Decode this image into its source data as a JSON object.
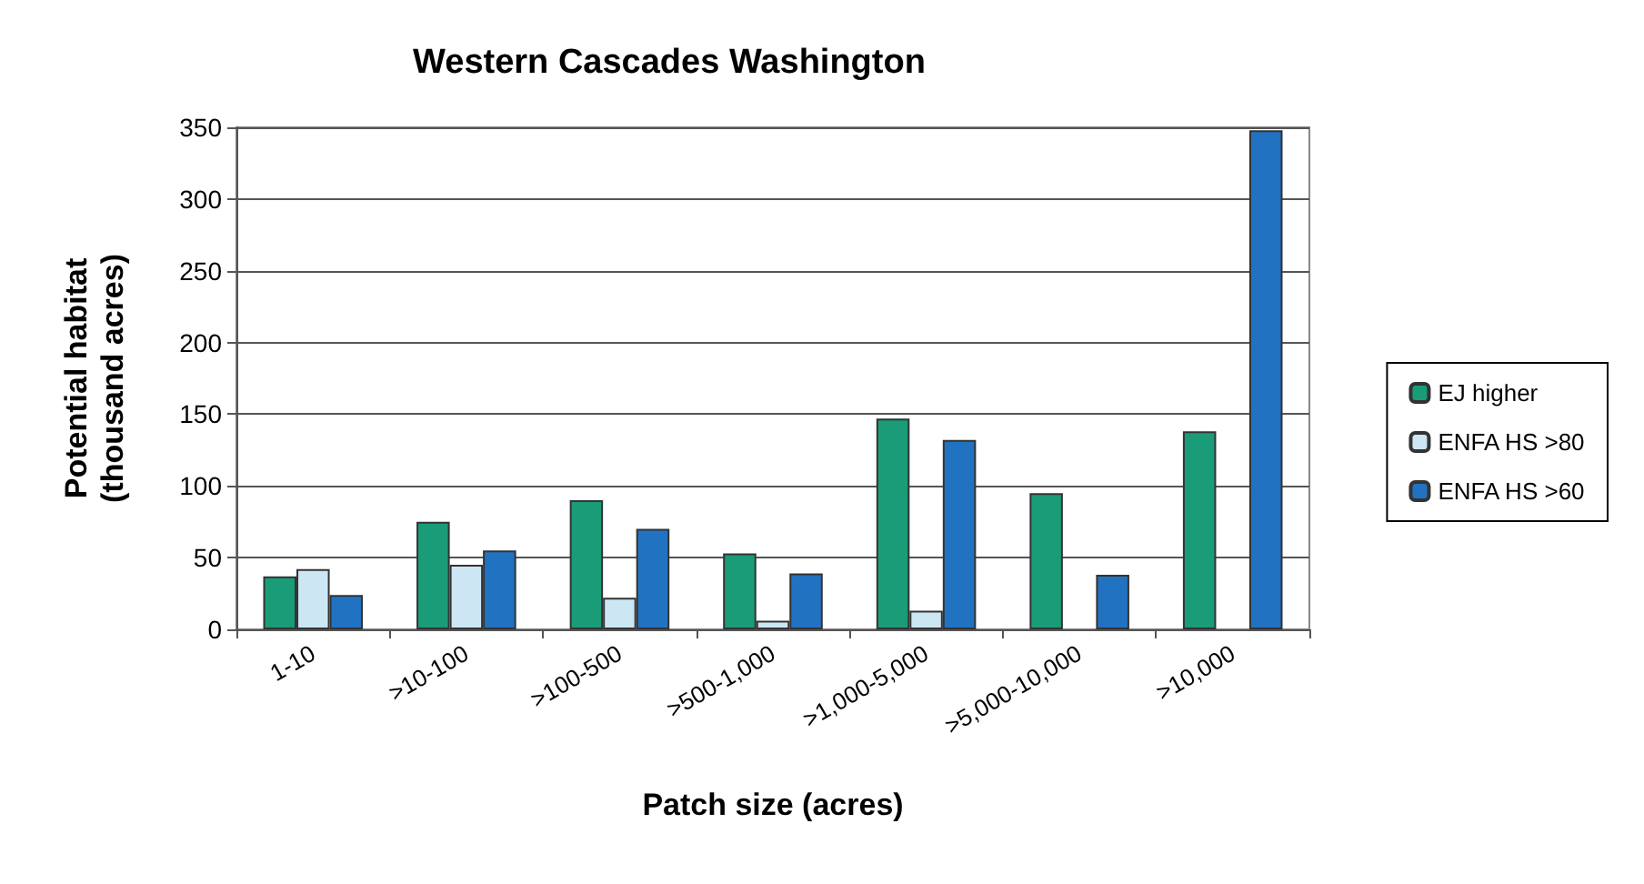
{
  "chart_data": {
    "type": "bar",
    "title": "Western Cascades Washington",
    "xlabel": "Patch size (acres)",
    "ylabel": "Potential habitat\n(thousand acres)",
    "categories": [
      "1-10",
      ">10-100",
      ">100-500",
      ">500-1,000",
      ">1,000-5,000",
      ">5,000-10,000",
      ">10,000"
    ],
    "series": [
      {
        "name": "EJ higher",
        "color": "#1a9c78",
        "values": [
          37,
          75,
          90,
          53,
          147,
          95,
          138
        ]
      },
      {
        "name": "ENFA HS >80",
        "color": "#cce6f4",
        "values": [
          42,
          45,
          22,
          6,
          13,
          null,
          null
        ]
      },
      {
        "name": "ENFA HS >60",
        "color": "#2173c2",
        "values": [
          24,
          55,
          70,
          39,
          132,
          38,
          348
        ]
      }
    ],
    "ylim": [
      0,
      350
    ],
    "yticks": [
      0,
      50,
      100,
      150,
      200,
      250,
      300,
      350
    ],
    "grid": "y",
    "legend": "right"
  }
}
